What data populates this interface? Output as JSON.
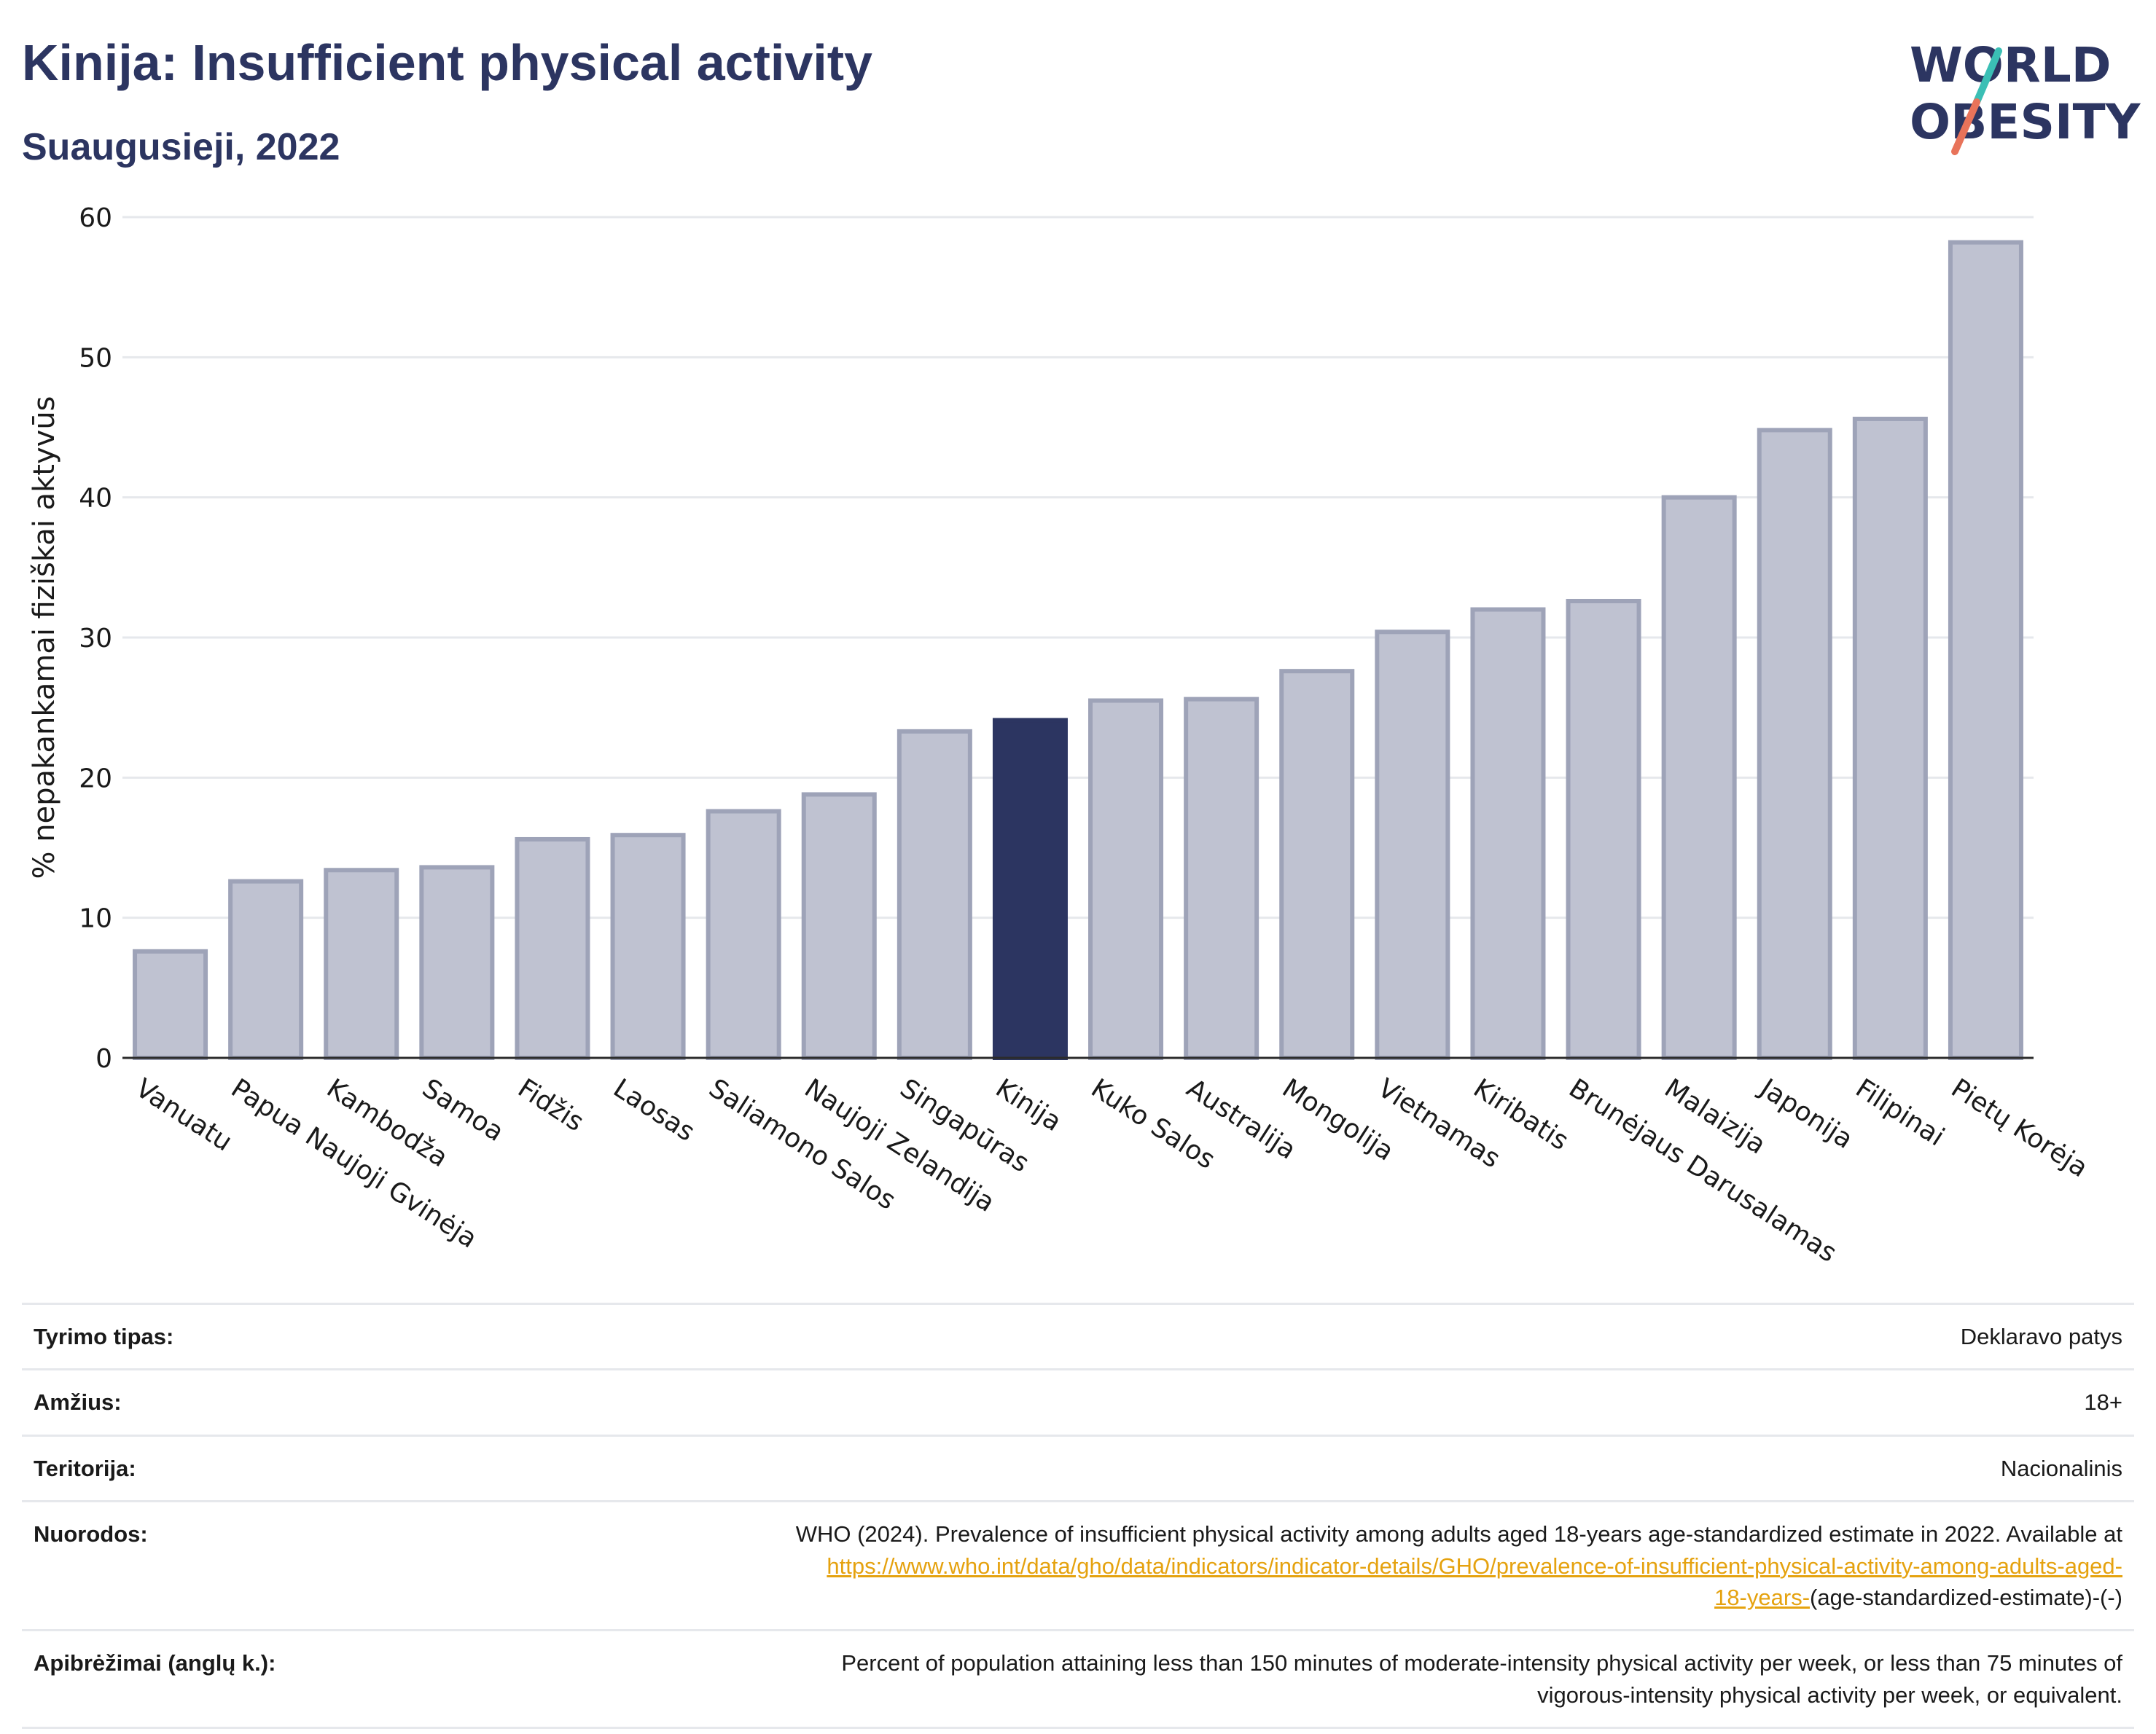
{
  "header": {
    "title": "Kinija: Insufficient physical activity",
    "subtitle": "Suaugusieji, 2022"
  },
  "logo": {
    "line1": "WORLD",
    "line2": "OBESITY",
    "colors": {
      "text": "#2c3561",
      "slash_top": "#3bbfb5",
      "slash_bottom": "#e8735a"
    }
  },
  "colors": {
    "highlight_bar": "#2c3561",
    "other_bar_fill": "#bfc2d1",
    "other_bar_stroke": "#9ea3b8",
    "grid": "#e6e8ec",
    "link": "#e5a20f"
  },
  "chart_data": {
    "type": "bar",
    "title": "",
    "xlabel": "",
    "ylabel": "% nepakankamai fiziškai aktyvūs",
    "ylim": [
      0,
      60
    ],
    "yticks": [
      0,
      10,
      20,
      30,
      40,
      50,
      60
    ],
    "grid": true,
    "highlight": "Kinija",
    "categories": [
      "Vanuatu",
      "Papua Naujoji Gvinėja",
      "Kambodža",
      "Samoa",
      "Fidžis",
      "Laosas",
      "Saliamono Salos",
      "Naujoji Zelandija",
      "Singapūras",
      "Kinija",
      "Kuko Salos",
      "Australija",
      "Mongolija",
      "Vietnamas",
      "Kiribatis",
      "Brunėjaus Darusalamas",
      "Malaizija",
      "Japonija",
      "Filipinai",
      "Pietų Korėja"
    ],
    "values": [
      7.6,
      12.6,
      13.4,
      13.6,
      15.6,
      15.9,
      17.6,
      18.8,
      23.3,
      24.1,
      25.5,
      25.6,
      27.6,
      30.4,
      32.0,
      32.6,
      40.0,
      44.8,
      45.6,
      58.2
    ]
  },
  "info": {
    "rows": [
      {
        "label": "Tyrimo tipas:",
        "value": "Deklaravo patys"
      },
      {
        "label": "Amžius:",
        "value": "18+"
      },
      {
        "label": "Teritorija:",
        "value": "Nacionalinis"
      }
    ],
    "refs": {
      "label": "Nuorodos:",
      "text": "WHO (2024). Prevalence of insufficient physical activity among adults aged 18-years age-standardized estimate in 2022. Available at",
      "link_line1": "https://www.who.int/data/gho/data/indicators/indicator-details/GHO/prevalence-of-insufficient-physical-activity-among-adults-aged-",
      "link_line2": "18-years-",
      "suffix": "(age-standardized-estimate)-(-)"
    },
    "definitions": {
      "label": "Apibrėžimai (anglų k.):",
      "line1": "Percent of population attaining less than 150 minutes of moderate-intensity physical activity per week, or less than 75 minutes of",
      "line2": "vigorous-intensity physical activity per week, or equivalent."
    }
  }
}
